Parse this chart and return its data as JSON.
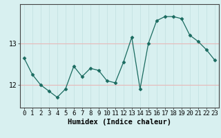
{
  "x": [
    0,
    1,
    2,
    3,
    4,
    5,
    6,
    7,
    8,
    9,
    10,
    11,
    12,
    13,
    14,
    15,
    16,
    17,
    18,
    19,
    20,
    21,
    22,
    23
  ],
  "y": [
    12.65,
    12.25,
    12.0,
    11.85,
    11.7,
    11.9,
    12.45,
    12.2,
    12.4,
    12.35,
    12.1,
    12.05,
    12.55,
    13.15,
    11.9,
    13.0,
    13.55,
    13.65,
    13.65,
    13.6,
    13.2,
    13.05,
    12.85,
    12.6
  ],
  "line_color": "#1a6b60",
  "marker": "D",
  "marker_size": 2.5,
  "bg_color": "#d8f0f0",
  "grid_color_h": "#e8b8b8",
  "grid_color_v": "#c0e0e0",
  "xlabel": "Humidex (Indice chaleur)",
  "yticks": [
    12,
    13
  ],
  "ylim": [
    11.45,
    13.95
  ],
  "xlim": [
    -0.5,
    23.5
  ],
  "xticks": [
    0,
    1,
    2,
    3,
    4,
    5,
    6,
    7,
    8,
    9,
    10,
    11,
    12,
    13,
    14,
    15,
    16,
    17,
    18,
    19,
    20,
    21,
    22,
    23
  ],
  "xlabel_fontsize": 7.5,
  "tick_fontsize": 6.5
}
